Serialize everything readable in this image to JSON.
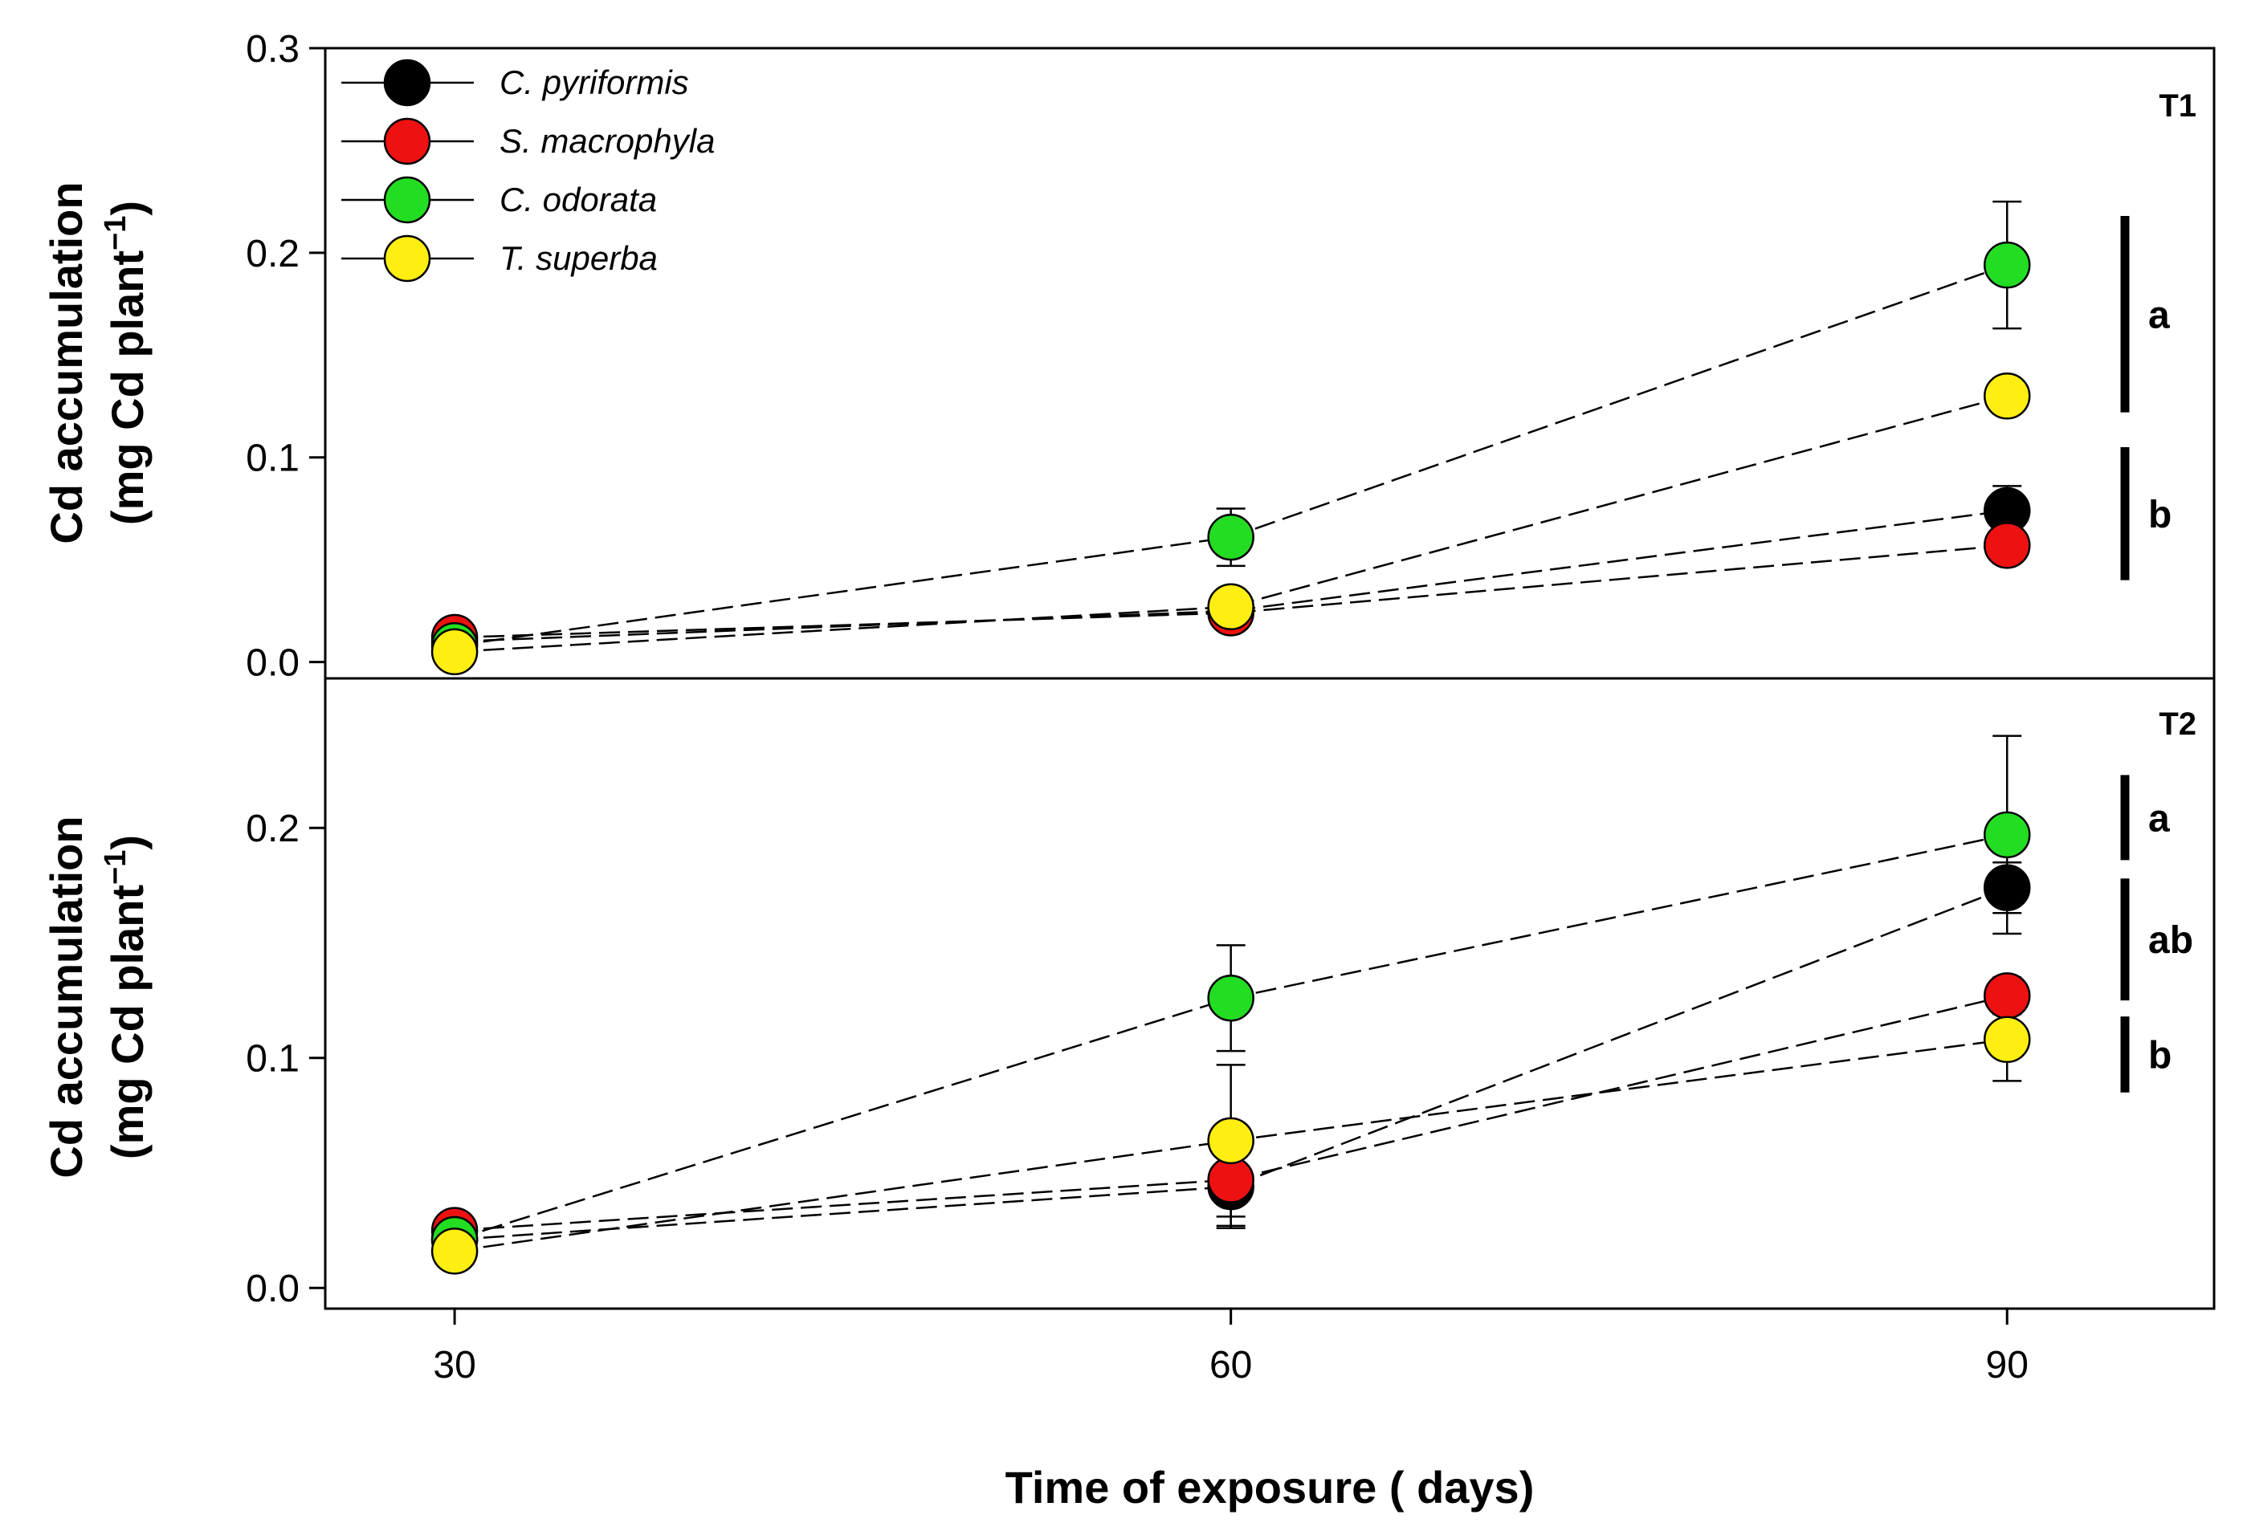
{
  "chart_data": {
    "type": "line",
    "x_label": "Time of exposure ( days)",
    "x": [
      30,
      60,
      90
    ],
    "xlim": [
      25,
      98
    ],
    "x_ticks": [
      "30",
      "60",
      "90"
    ],
    "legend": {
      "position": "top-left",
      "entries": [
        "C. pyriformis",
        "S. macrophyla",
        "C. odorata",
        "T. superba"
      ]
    },
    "colors": {
      "C. pyriformis": "#000000",
      "S. macrophyla": "#ee1111",
      "C. odorata": "#22dd22",
      "T. superba": "#ffee11"
    },
    "panels": [
      {
        "label": "T1",
        "y_label_line1": "Cd accumulation",
        "y_label_line2": "(mg Cd plant",
        "y_label_sup": "−1",
        "y_label_close": ")",
        "ylim": [
          -0.008,
          0.3
        ],
        "y_ticks": [
          "0.0",
          "0.1",
          "0.2",
          "0.3"
        ],
        "series": [
          {
            "name": "C. pyriformis",
            "values": [
              0.01,
              0.025,
              0.074
            ],
            "errors": [
              0.002,
              0.002,
              0.012
            ]
          },
          {
            "name": "S. macrophyla",
            "values": [
              0.012,
              0.024,
              0.057
            ],
            "errors": [
              0.002,
              0.002,
              0.003
            ]
          },
          {
            "name": "C. odorata",
            "values": [
              0.008,
              0.061,
              0.194
            ],
            "errors": [
              0.002,
              0.014,
              0.031
            ]
          },
          {
            "name": "T. superba",
            "values": [
              0.005,
              0.027,
              0.13
            ],
            "errors": [
              0.002,
              0.003,
              0.004
            ]
          }
        ],
        "groups": [
          {
            "label": "a",
            "from": 0.122,
            "to": 0.218
          },
          {
            "label": "b",
            "from": 0.04,
            "to": 0.105
          }
        ]
      },
      {
        "label": "T2",
        "y_label_line1": "Cd accumulation",
        "y_label_line2": "(mg Cd plant",
        "y_label_sup": "−1",
        "y_label_close": ")",
        "ylim": [
          -0.009,
          0.265
        ],
        "y_ticks": [
          "0.0",
          "0.1",
          "0.2"
        ],
        "series": [
          {
            "name": "C. pyriformis",
            "values": [
              0.021,
              0.044,
              0.174
            ],
            "errors": [
              0.002,
              0.018,
              0.011
            ]
          },
          {
            "name": "S. macrophyla",
            "values": [
              0.025,
              0.047,
              0.127
            ],
            "errors": [
              0.002,
              0.02,
              0.008
            ]
          },
          {
            "name": "C. odorata",
            "values": [
              0.021,
              0.126,
              0.197
            ],
            "errors": [
              0.002,
              0.023,
              0.043
            ]
          },
          {
            "name": "T. superba",
            "values": [
              0.016,
              0.064,
              0.108
            ],
            "errors": [
              0.002,
              0.033,
              0.018
            ]
          }
        ],
        "groups": [
          {
            "label": "a",
            "from": 0.186,
            "to": 0.223
          },
          {
            "label": "ab",
            "from": 0.125,
            "to": 0.178
          },
          {
            "label": "b",
            "from": 0.085,
            "to": 0.118
          }
        ]
      }
    ]
  }
}
